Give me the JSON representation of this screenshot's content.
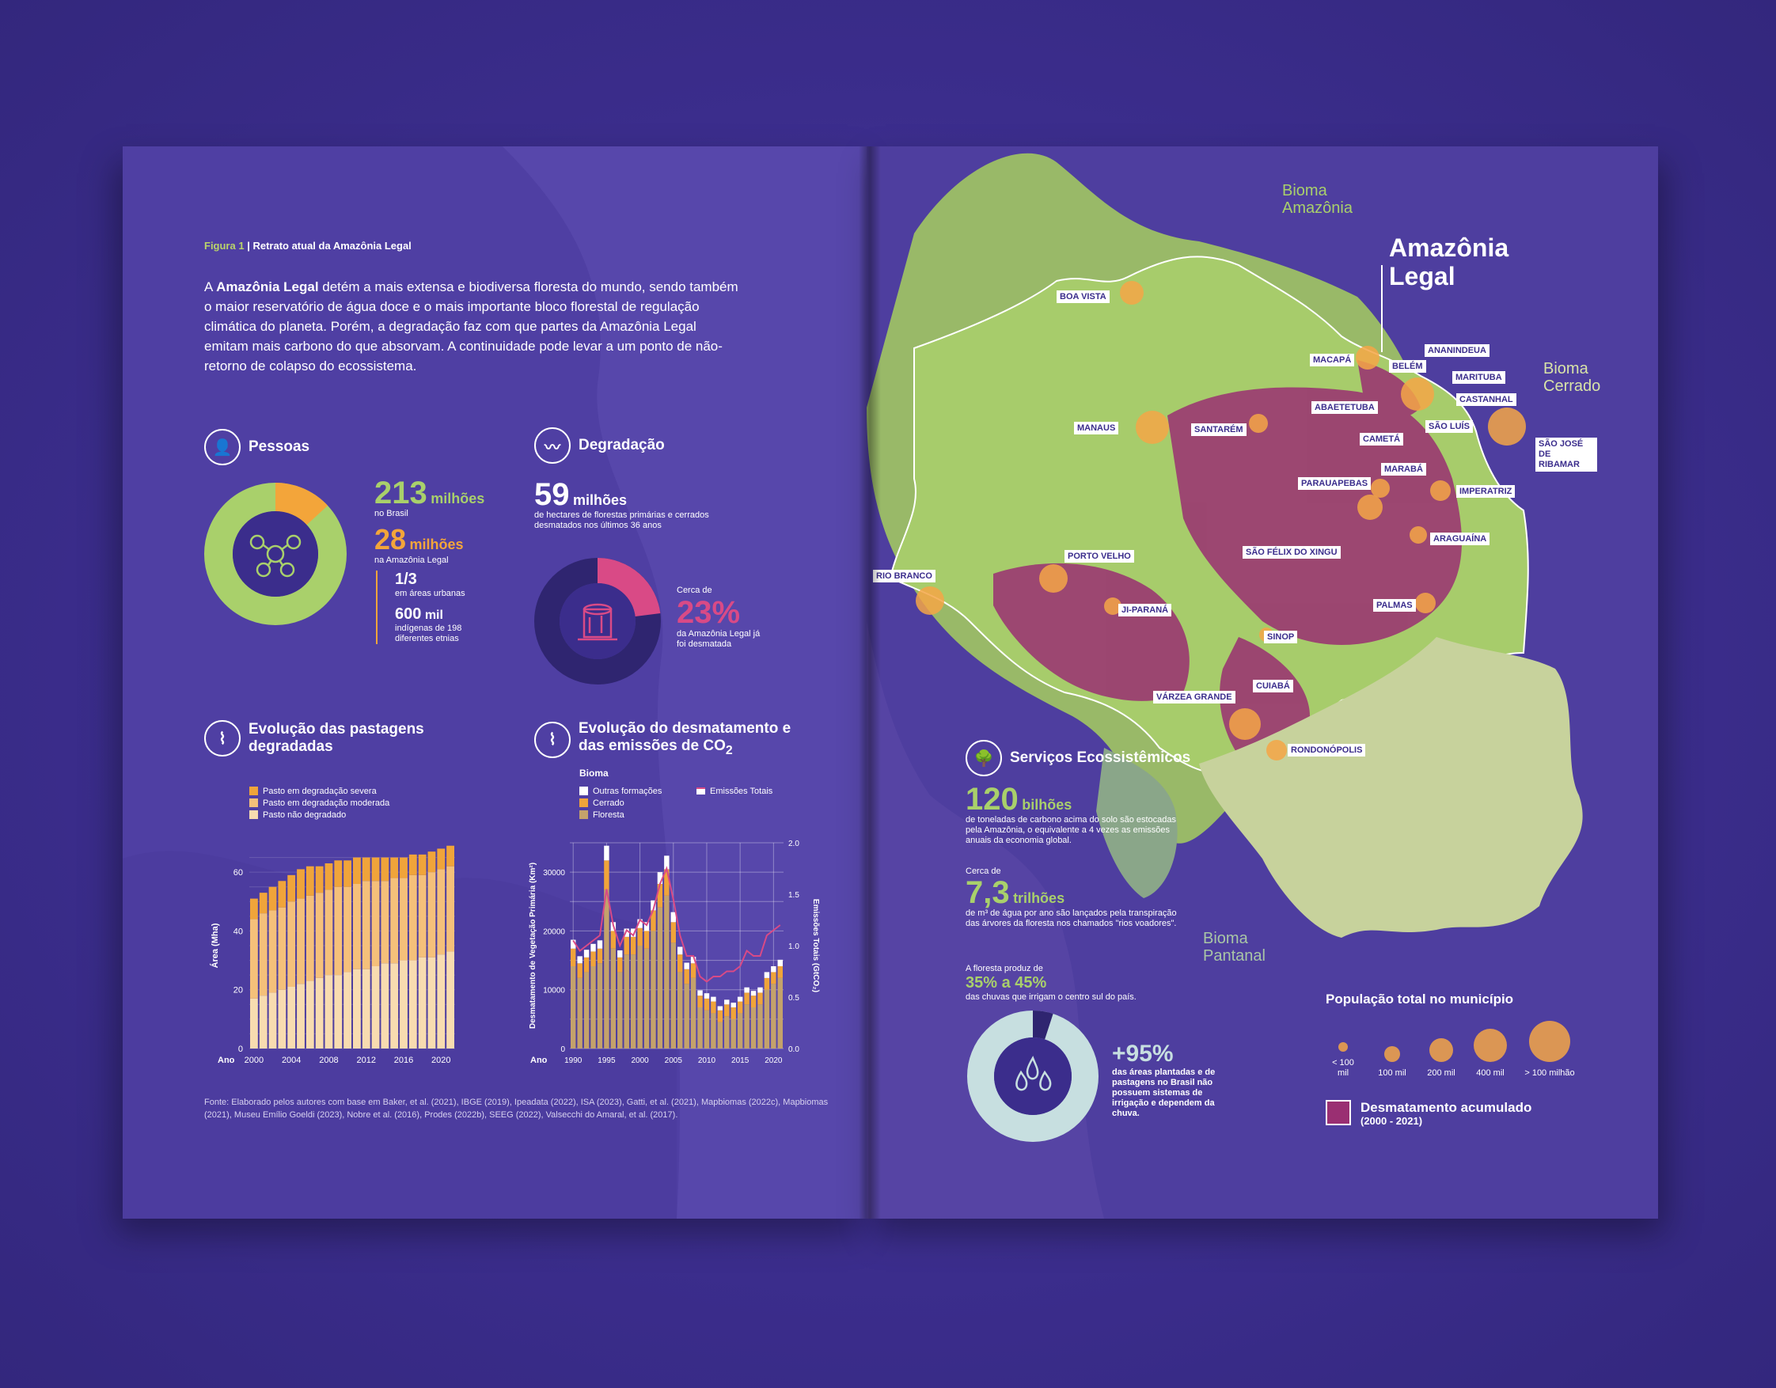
{
  "figure": {
    "label": "Figura 1",
    "title": "Retrato atual da Amazônia Legal"
  },
  "intro": {
    "bold": "Amazônia Legal",
    "text": "A Amazônia Legal detém a mais extensa e biodiversa floresta do mundo, sendo também o maior reservatório de água doce e o mais importante bloco florestal de regulação climática do planeta. Porém, a degradação faz com que partes da Amazônia Legal emitam mais carbono do que absorvam. A continuidade pode levar a um ponto de não-retorno de colapso do ecossistema."
  },
  "pessoas": {
    "title": "Pessoas",
    "brasil_value": "213",
    "brasil_unit": "milhões",
    "brasil_label": "no Brasil",
    "amazonia_value": "28",
    "amazonia_unit": "milhões",
    "amazonia_label": "na Amazônia Legal",
    "urban_value": "1/3",
    "urban_label": "em áreas urbanas",
    "indig_value": "600",
    "indig_unit": "mil",
    "indig_label": "indígenas de 198 diferentes etnias",
    "share": 0.131
  },
  "degradacao": {
    "title": "Degradação",
    "value": "59",
    "unit": "milhões",
    "label": "de hectares de florestas primárias e cerrados desmatados nos últimos 36 anos",
    "pct_prefix": "Cerca de",
    "pct": "23%",
    "pct_label": "da Amazônia Legal já foi desmatada",
    "share": 0.23
  },
  "pastagens": {
    "title": "Evolução das pastagens degradadas",
    "legend": [
      "Pasto em degradação severa",
      "Pasto em degradação moderada",
      "Pasto não degradado"
    ],
    "colors": {
      "severa": "#f0a43a",
      "moderada": "#f5c07a",
      "nao": "#f8dcb0"
    },
    "ylabel": "Área (Mha)",
    "xlabel": "Ano",
    "yticks": [
      "0",
      "20",
      "40",
      "60"
    ],
    "xticks": [
      "2000",
      "2004",
      "2008",
      "2012",
      "2016",
      "2020"
    ]
  },
  "pastagens_chart": {
    "type": "bar",
    "x": [
      2000,
      2001,
      2002,
      2003,
      2004,
      2005,
      2006,
      2007,
      2008,
      2009,
      2010,
      2011,
      2012,
      2013,
      2014,
      2015,
      2016,
      2017,
      2018,
      2019,
      2020,
      2021
    ],
    "series": [
      {
        "name": "Pasto não degradado",
        "values": [
          17,
          18,
          19,
          20,
          21,
          22,
          23,
          24,
          25,
          25,
          26,
          27,
          27,
          28,
          29,
          29,
          30,
          30,
          31,
          31,
          32,
          33
        ]
      },
      {
        "name": "Pasto em degradação moderada",
        "values": [
          27,
          28,
          28,
          28,
          29,
          29,
          29,
          29,
          29,
          30,
          29,
          29,
          30,
          29,
          28,
          29,
          28,
          29,
          28,
          29,
          29,
          29
        ]
      },
      {
        "name": "Pasto em degradação severa",
        "values": [
          7,
          7,
          8,
          9,
          9,
          10,
          10,
          9,
          9,
          9,
          9,
          9,
          8,
          8,
          8,
          7,
          7,
          7,
          7,
          7,
          7,
          7
        ]
      }
    ],
    "ylim": [
      0,
      70
    ]
  },
  "desmatamento": {
    "title": "Evolução do desmatamento e das emissões de CO",
    "title_sub": "2",
    "legend_title": "Bioma",
    "legend": [
      "Outras formações",
      "Cerrado",
      "Floresta"
    ],
    "line_label": "Emissões Totais",
    "colors": {
      "outras": "#ffffff",
      "cerrado": "#f0a43a",
      "floresta": "#c4a26b",
      "line": "#d94a86"
    },
    "ylabel": "Desmatamento de Vegetação Primária (Km²)",
    "y2label": "Emissões Totais (GtCO₂)",
    "xlabel": "Ano",
    "yticks": [
      "0",
      "10000",
      "20000",
      "30000"
    ],
    "y2ticks": [
      "0.0",
      "0.5",
      "1.0",
      "1.5",
      "2.0"
    ],
    "xticks": [
      "1990",
      "1995",
      "2000",
      "2005",
      "2010",
      "2015",
      "2020"
    ]
  },
  "desmatamento_chart": {
    "type": "bar",
    "x": [
      1990,
      1991,
      1992,
      1993,
      1994,
      1995,
      1996,
      1997,
      1998,
      1999,
      2000,
      2001,
      2002,
      2003,
      2004,
      2005,
      2006,
      2007,
      2008,
      2009,
      2010,
      2011,
      2012,
      2013,
      2014,
      2015,
      2016,
      2017,
      2018,
      2019,
      2020,
      2021
    ],
    "series": [
      {
        "name": "Floresta",
        "values": [
          14000,
          12000,
          13000,
          14000,
          14500,
          27000,
          17000,
          13000,
          16000,
          16000,
          17500,
          17000,
          20000,
          24000,
          26000,
          18000,
          13000,
          11000,
          12000,
          7000,
          6500,
          6000,
          4500,
          5500,
          5000,
          6000,
          7500,
          7000,
          7500,
          10000,
          11000,
          12000
        ]
      },
      {
        "name": "Cerrado",
        "values": [
          3000,
          2500,
          2500,
          2500,
          2500,
          5000,
          3000,
          2500,
          3000,
          3000,
          3000,
          3000,
          3500,
          4000,
          4500,
          3500,
          3000,
          2500,
          2500,
          2000,
          2000,
          2000,
          2000,
          2000,
          2000,
          2000,
          2000,
          2000,
          2000,
          2000,
          2000,
          2000
        ]
      },
      {
        "name": "Outras formações",
        "values": [
          1500,
          1200,
          1300,
          1300,
          1400,
          2500,
          1500,
          1200,
          1400,
          1400,
          1500,
          1500,
          1700,
          2000,
          2300,
          1700,
          1300,
          1100,
          1100,
          900,
          900,
          800,
          700,
          800,
          800,
          800,
          900,
          800,
          900,
          1000,
          1000,
          1100
        ]
      },
      {
        "name": "Emissões Totais",
        "values": [
          1.05,
          0.95,
          1.0,
          1.05,
          1.1,
          1.55,
          1.2,
          1.0,
          1.15,
          1.1,
          1.25,
          1.2,
          1.35,
          1.6,
          1.75,
          1.45,
          1.1,
          0.9,
          0.9,
          0.7,
          0.65,
          0.7,
          0.7,
          0.75,
          0.75,
          0.8,
          0.95,
          0.9,
          0.9,
          1.1,
          1.15,
          1.2
        ]
      }
    ],
    "ylim": [
      0,
      35000
    ],
    "y2lim": [
      0,
      2.0
    ]
  },
  "source": "Fonte: Elaborado pelos autores com base em Baker, et al. (2021), IBGE (2019), Ipeadata (2022), ISA (2023), Gatti, et al. (2021), Mapbiomas (2022c), Mapbiomas (2021), Museu Emílio Goeldi (2023), Nobre et al. (2016), Prodes (2022b), SEEG (2022), Valsecchi do Amaral, et al. (2017).",
  "map": {
    "title_line1": "Amazônia",
    "title_line2": "Legal",
    "bioma_amazonia": [
      "Bioma",
      "Amazônia"
    ],
    "bioma_cerrado": [
      "Bioma",
      "Cerrado"
    ],
    "bioma_pantanal": [
      "Bioma",
      "Pantanal"
    ],
    "cities": [
      "BOA VISTA",
      "MACAPÁ",
      "ANANINDEUA",
      "BELÉM",
      "MARITUBA",
      "CASTANHAL",
      "ABAETETUBA",
      "SÃO LUÍS",
      "MANAUS",
      "SANTARÉM",
      "CAMETÁ",
      "SÃO JOSÉ DE RIBAMAR",
      "MARABÁ",
      "PARAUAPEBAS",
      "IMPERATRIZ",
      "ARAGUAÍNA",
      "SÃO FÉLIX DO XINGU",
      "PORTO VELHO",
      "RIO BRANCO",
      "PALMAS",
      "JI-PARANÁ",
      "SINOP",
      "CUIABÁ",
      "VÁRZEA GRANDE",
      "RONDONÓPOLIS"
    ]
  },
  "servicos": {
    "title": "Serviços Ecossistêmicos",
    "carbono_value": "120",
    "carbono_unit": "bilhões",
    "carbono_label": "de toneladas de carbono acima do solo são estocadas pela Amazônia, o equivalente a 4 vezes as emissões anuais da economia global.",
    "agua_prefix": "Cerca de",
    "agua_value": "7,3",
    "agua_unit": "trilhões",
    "agua_label": "de m³ de água por ano são lançados pela transpiração das árvores da floresta nos chamados \"rios voadores\".",
    "chuva_prefix": "A floresta produz de",
    "chuva_value": "35% a 45%",
    "chuva_label": "das chuvas que irrigam o centro sul do país.",
    "irrig_value": "+95%",
    "irrig_label": "das áreas plantadas e de pastagens no Brasil não possuem sistemas de irrigação e dependem da chuva.",
    "irrig_share": 0.95
  },
  "map_legend": {
    "pop_title": "População total no município",
    "pop_sizes": [
      "< 100 mil",
      "100 mil",
      "200 mil",
      "400 mil",
      "> 100 milhão"
    ],
    "desm_title": "Desmatamento acumulado",
    "desm_period": "(2000 - 2021)"
  }
}
